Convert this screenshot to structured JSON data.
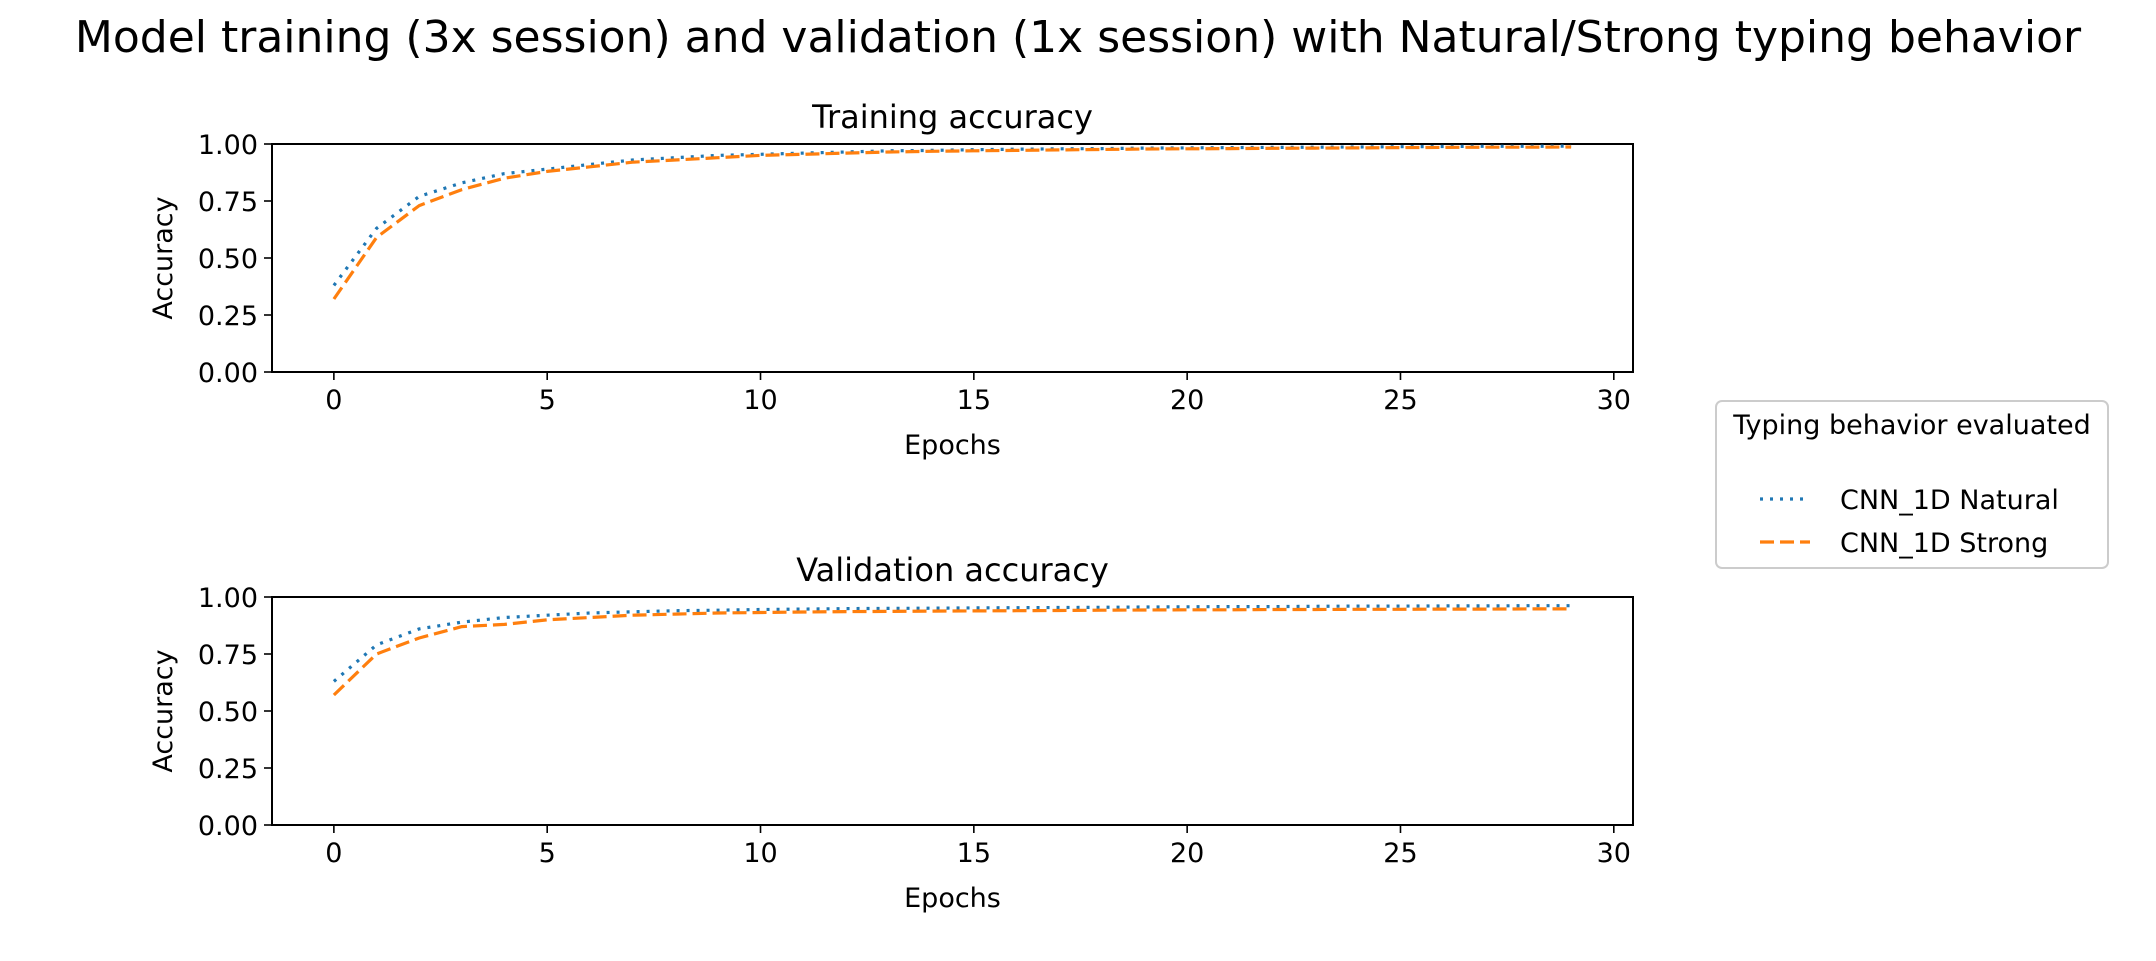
{
  "figure": {
    "suptitle": "Model training (3x session) and validation (1x session) with Natural/Strong typing behavior"
  },
  "legend": {
    "title": "Typing behavior evaluated",
    "placement": "center-right, outside axes"
  },
  "chart_data": [
    {
      "type": "line",
      "title": "Training accuracy",
      "xlabel": "Epochs",
      "ylabel": "Accuracy",
      "xlim": [
        -1.45,
        30.45
      ],
      "ylim": [
        0.0,
        1.0
      ],
      "x_ticks": [
        0,
        5,
        10,
        15,
        20,
        25,
        30
      ],
      "y_ticks": [
        0.0,
        0.25,
        0.5,
        0.75,
        1.0
      ],
      "x_tick_labels": [
        "0",
        "5",
        "10",
        "15",
        "20",
        "25",
        "30"
      ],
      "y_tick_labels": [
        "0.00",
        "0.25",
        "0.50",
        "0.75",
        "1.00"
      ],
      "grid": false,
      "x": [
        0,
        1,
        2,
        3,
        4,
        5,
        6,
        7,
        8,
        9,
        10,
        11,
        12,
        13,
        14,
        15,
        16,
        17,
        18,
        19,
        20,
        21,
        22,
        23,
        24,
        25,
        26,
        27,
        28,
        29
      ],
      "series": [
        {
          "name": "CNN_1D Natural",
          "color": "#1f77b4",
          "linestyle": "dotted",
          "values": [
            0.38,
            0.63,
            0.77,
            0.83,
            0.87,
            0.89,
            0.91,
            0.93,
            0.94,
            0.95,
            0.955,
            0.96,
            0.965,
            0.97,
            0.972,
            0.975,
            0.977,
            0.979,
            0.98,
            0.982,
            0.983,
            0.984,
            0.985,
            0.986,
            0.987,
            0.988,
            0.989,
            0.99,
            0.99,
            0.991
          ]
        },
        {
          "name": "CNN_1D Strong",
          "color": "#ff7f0e",
          "linestyle": "dashed",
          "values": [
            0.32,
            0.59,
            0.73,
            0.8,
            0.85,
            0.88,
            0.9,
            0.92,
            0.93,
            0.94,
            0.95,
            0.955,
            0.96,
            0.965,
            0.968,
            0.97,
            0.972,
            0.974,
            0.976,
            0.978,
            0.979,
            0.98,
            0.981,
            0.982,
            0.983,
            0.984,
            0.985,
            0.986,
            0.986,
            0.987
          ]
        }
      ]
    },
    {
      "type": "line",
      "title": "Validation accuracy",
      "xlabel": "Epochs",
      "ylabel": "Accuracy",
      "xlim": [
        -1.45,
        30.45
      ],
      "ylim": [
        0.0,
        1.0
      ],
      "x_ticks": [
        0,
        5,
        10,
        15,
        20,
        25,
        30
      ],
      "y_ticks": [
        0.0,
        0.25,
        0.5,
        0.75,
        1.0
      ],
      "x_tick_labels": [
        "0",
        "5",
        "10",
        "15",
        "20",
        "25",
        "30"
      ],
      "y_tick_labels": [
        "0.00",
        "0.25",
        "0.50",
        "0.75",
        "1.00"
      ],
      "grid": false,
      "x": [
        0,
        1,
        2,
        3,
        4,
        5,
        6,
        7,
        8,
        9,
        10,
        11,
        12,
        13,
        14,
        15,
        16,
        17,
        18,
        19,
        20,
        21,
        22,
        23,
        24,
        25,
        26,
        27,
        28,
        29
      ],
      "series": [
        {
          "name": "CNN_1D Natural",
          "color": "#1f77b4",
          "linestyle": "dotted",
          "values": [
            0.63,
            0.79,
            0.86,
            0.89,
            0.91,
            0.92,
            0.93,
            0.935,
            0.94,
            0.942,
            0.945,
            0.947,
            0.949,
            0.95,
            0.951,
            0.952,
            0.953,
            0.954,
            0.955,
            0.956,
            0.957,
            0.958,
            0.958,
            0.959,
            0.96,
            0.96,
            0.961,
            0.961,
            0.962,
            0.962
          ]
        },
        {
          "name": "CNN_1D Strong",
          "color": "#ff7f0e",
          "linestyle": "dashed",
          "values": [
            0.57,
            0.75,
            0.82,
            0.87,
            0.88,
            0.9,
            0.91,
            0.92,
            0.925,
            0.93,
            0.932,
            0.934,
            0.936,
            0.937,
            0.938,
            0.939,
            0.94,
            0.941,
            0.942,
            0.943,
            0.944,
            0.944,
            0.945,
            0.945,
            0.946,
            0.946,
            0.947,
            0.947,
            0.948,
            0.948
          ]
        }
      ]
    }
  ]
}
